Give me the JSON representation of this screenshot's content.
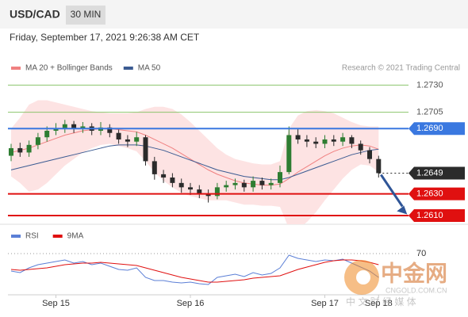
{
  "chart_data": [
    {
      "type": "candlestick",
      "title": "USD/CAD",
      "timeframe": "30 MIN",
      "subtitle": "Friday, September 17, 2021 9:26:38 AM CET",
      "source": "Research © 2021 Trading Central",
      "categories": [
        null,
        null,
        null,
        null,
        null,
        "Sep 15",
        null,
        null,
        null,
        null,
        null,
        null,
        null,
        null,
        null,
        null,
        null,
        null,
        null,
        null,
        "Sep 16",
        null,
        null,
        null,
        null,
        null,
        null,
        null,
        null,
        null,
        null,
        null,
        null,
        null,
        null,
        "Sep 17",
        null,
        null,
        null,
        null,
        null,
        "Sep 18"
      ],
      "open": [
        1.2665,
        1.2672,
        1.2668,
        1.2675,
        1.2682,
        1.2688,
        1.269,
        1.2694,
        1.269,
        1.2692,
        1.2688,
        1.2691,
        1.2686,
        1.268,
        1.2678,
        1.2682,
        1.266,
        1.2648,
        1.2645,
        1.264,
        1.2636,
        1.2634,
        1.263,
        1.2628,
        1.2636,
        1.2638,
        1.264,
        1.2636,
        1.2642,
        1.2638,
        1.264,
        1.265,
        1.2684,
        1.268,
        1.2678,
        1.2676,
        1.268,
        1.2678,
        1.2682,
        1.2676,
        1.267,
        1.2662
      ],
      "high": [
        1.2676,
        1.2677,
        1.2679,
        1.2686,
        1.2692,
        1.2695,
        1.2698,
        1.2697,
        1.2696,
        1.2695,
        1.2696,
        1.2694,
        1.2689,
        1.2684,
        1.2687,
        1.2684,
        1.2664,
        1.2652,
        1.2649,
        1.2644,
        1.264,
        1.2638,
        1.2634,
        1.264,
        1.2642,
        1.2644,
        1.2643,
        1.2646,
        1.2645,
        1.2644,
        1.2656,
        1.2692,
        1.269,
        1.2684,
        1.2682,
        1.2684,
        1.2684,
        1.2686,
        1.2684,
        1.2679,
        1.2673,
        1.2665
      ],
      "low": [
        1.266,
        1.2664,
        1.2664,
        1.2671,
        1.2678,
        1.2684,
        1.2686,
        1.2686,
        1.2686,
        1.2684,
        1.2684,
        1.2682,
        1.2676,
        1.2673,
        1.2674,
        1.2656,
        1.2643,
        1.264,
        1.2636,
        1.2631,
        1.2629,
        1.2626,
        1.2622,
        1.2625,
        1.2632,
        1.2634,
        1.2632,
        1.2632,
        1.2634,
        1.2634,
        1.2636,
        1.2648,
        1.2676,
        1.2673,
        1.2672,
        1.2672,
        1.2674,
        1.2674,
        1.2672,
        1.2666,
        1.2658,
        1.2645
      ],
      "close": [
        1.2672,
        1.2668,
        1.2675,
        1.2682,
        1.2688,
        1.269,
        1.2694,
        1.269,
        1.2692,
        1.2688,
        1.2691,
        1.2686,
        1.268,
        1.2678,
        1.2682,
        1.266,
        1.2648,
        1.2645,
        1.264,
        1.2636,
        1.2634,
        1.263,
        1.2628,
        1.2636,
        1.2638,
        1.264,
        1.2636,
        1.2642,
        1.2638,
        1.264,
        1.265,
        1.2684,
        1.268,
        1.2678,
        1.2676,
        1.268,
        1.2678,
        1.2682,
        1.2676,
        1.267,
        1.2662,
        1.2649
      ],
      "up_color": "#2e7d32",
      "down_color": "#2b2b2b",
      "series": [
        {
          "name": "MA 20 + Bollinger Bands",
          "color": "#f08080",
          "band_color": "#fde3e3",
          "values": [
            1.2668,
            1.267,
            1.2672,
            1.2675,
            1.2678,
            1.2681,
            1.2684,
            1.2686,
            1.2688,
            1.2689,
            1.269,
            1.269,
            1.2689,
            1.2688,
            1.2687,
            1.2684,
            1.268,
            1.2676,
            1.2672,
            1.2667,
            1.2662,
            1.2657,
            1.2652,
            1.2648,
            1.2645,
            1.2642,
            1.264,
            1.2639,
            1.2638,
            1.2638,
            1.2639,
            1.2644,
            1.265,
            1.2655,
            1.266,
            1.2665,
            1.2669,
            1.2672,
            1.2674,
            1.2675,
            1.2674,
            1.2671
          ],
          "band_upper": [
            1.269,
            1.27,
            1.2712,
            1.2716,
            1.2716,
            1.2714,
            1.2712,
            1.271,
            1.2708,
            1.2706,
            1.2705,
            1.2704,
            1.2704,
            1.2704,
            1.2705,
            1.2708,
            1.271,
            1.271,
            1.2708,
            1.2703,
            1.2696,
            1.2688,
            1.268,
            1.2672,
            1.2666,
            1.2662,
            1.266,
            1.2658,
            1.2657,
            1.2657,
            1.266,
            1.269,
            1.2702,
            1.2706,
            1.2707,
            1.2706,
            1.2704,
            1.27,
            1.2696,
            1.2693,
            1.2692,
            1.2692
          ],
          "band_lower": [
            1.2646,
            1.264,
            1.2632,
            1.2634,
            1.264,
            1.2648,
            1.2656,
            1.2662,
            1.2668,
            1.2672,
            1.2675,
            1.2676,
            1.2674,
            1.2672,
            1.2669,
            1.266,
            1.265,
            1.2642,
            1.2636,
            1.2631,
            1.2628,
            1.2626,
            1.2624,
            1.2624,
            1.2624,
            1.2622,
            1.262,
            1.262,
            1.2619,
            1.2619,
            1.2618,
            1.2598,
            1.2598,
            1.2604,
            1.2613,
            1.2624,
            1.2634,
            1.2644,
            1.2652,
            1.2657,
            1.2656,
            1.265
          ]
        },
        {
          "name": "MA 50",
          "color": "#3b5b92",
          "values": [
            1.2652,
            1.2654,
            1.2656,
            1.2658,
            1.266,
            1.2662,
            1.2664,
            1.2666,
            1.2668,
            1.267,
            1.2672,
            1.2674,
            1.2675,
            1.2675,
            1.2675,
            1.2674,
            1.2672,
            1.267,
            1.2667,
            1.2664,
            1.2661,
            1.2658,
            1.2655,
            1.2652,
            1.265,
            1.2648,
            1.2646,
            1.2645,
            1.2644,
            1.2643,
            1.2643,
            1.2645,
            1.2648,
            1.2651,
            1.2654,
            1.2657,
            1.266,
            1.2663,
            1.2666,
            1.2668,
            1.267,
            1.2671
          ]
        }
      ],
      "levels": [
        {
          "value": 1.273,
          "label": "1.2730",
          "color": "#8cc46c",
          "tag": false,
          "line_style": "solid"
        },
        {
          "value": 1.2705,
          "label": "1.2705",
          "color": "#8cc46c",
          "tag": false,
          "line_style": "solid"
        },
        {
          "value": 1.269,
          "label": "1.2690",
          "color": "#3a78e0",
          "tag": true,
          "line_style": "solid"
        },
        {
          "value": 1.2649,
          "label": "1.2649",
          "color": "#2b2b2b",
          "tag": true,
          "line_style": "dotted"
        },
        {
          "value": 1.263,
          "label": "1.2630",
          "color": "#e01010",
          "tag": true,
          "line_style": "solid"
        },
        {
          "value": 1.261,
          "label": "1.2610",
          "color": "#e01010",
          "tag": true,
          "line_style": "solid"
        }
      ],
      "ylim": [
        1.2602,
        1.2739
      ]
    },
    {
      "type": "line",
      "series": [
        {
          "name": "RSI",
          "color": "#5b7fd6",
          "values": [
            48,
            46,
            52,
            56,
            58,
            60,
            62,
            58,
            60,
            56,
            58,
            54,
            50,
            49,
            52,
            40,
            36,
            36,
            34,
            33,
            34,
            32,
            31,
            40,
            42,
            44,
            41,
            46,
            43,
            45,
            52,
            68,
            64,
            62,
            60,
            62,
            61,
            63,
            58,
            53,
            48,
            40
          ]
        },
        {
          "name": "9MA",
          "color": "#e01010",
          "values": [
            50,
            49,
            50,
            51,
            52,
            54,
            56,
            57,
            58,
            58,
            59,
            58,
            57,
            56,
            55,
            52,
            49,
            46,
            43,
            40,
            38,
            36,
            34,
            34,
            35,
            36,
            37,
            39,
            40,
            41,
            42,
            46,
            50,
            53,
            56,
            59,
            61,
            62,
            62,
            61,
            59,
            56
          ]
        }
      ],
      "ylim": [
        20,
        90
      ],
      "yticks": [
        70
      ],
      "grid": true
    }
  ],
  "watermark": {
    "brand": "中金网",
    "site": "CNGOLD.COM.CN",
    "tagline": "中 文 财 经 媒 体"
  }
}
